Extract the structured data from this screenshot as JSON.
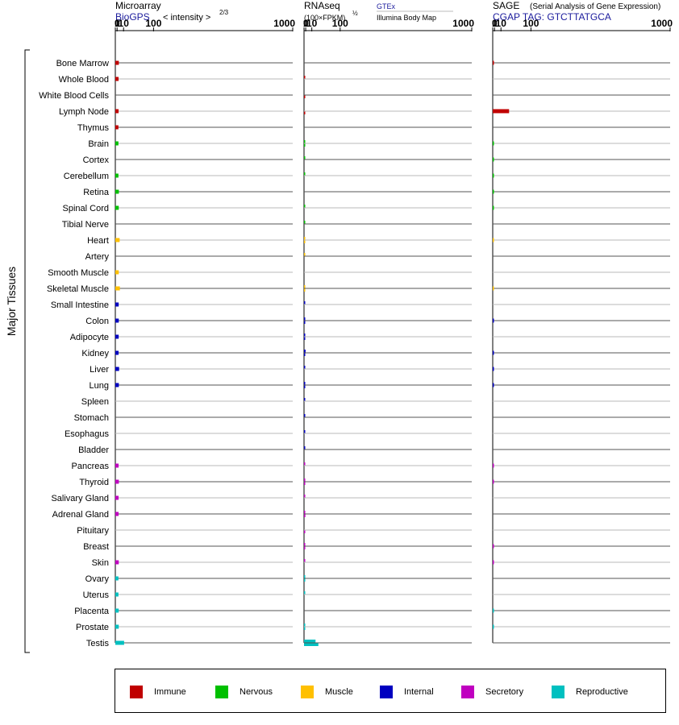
{
  "chart_data": {
    "type": "bar",
    "side_label": "Major Tissues",
    "tissues": [
      {
        "name": "Bone Marrow",
        "group": "immune"
      },
      {
        "name": "Whole Blood",
        "group": "immune"
      },
      {
        "name": "White Blood Cells",
        "group": "immune"
      },
      {
        "name": "Lymph Node",
        "group": "immune"
      },
      {
        "name": "Thymus",
        "group": "immune"
      },
      {
        "name": "Brain",
        "group": "nervous"
      },
      {
        "name": "Cortex",
        "group": "nervous"
      },
      {
        "name": "Cerebellum",
        "group": "nervous"
      },
      {
        "name": "Retina",
        "group": "nervous"
      },
      {
        "name": "Spinal Cord",
        "group": "nervous"
      },
      {
        "name": "Tibial Nerve",
        "group": "nervous"
      },
      {
        "name": "Heart",
        "group": "muscle"
      },
      {
        "name": "Artery",
        "group": "muscle"
      },
      {
        "name": "Smooth Muscle",
        "group": "muscle"
      },
      {
        "name": "Skeletal Muscle",
        "group": "muscle"
      },
      {
        "name": "Small Intestine",
        "group": "internal"
      },
      {
        "name": "Colon",
        "group": "internal"
      },
      {
        "name": "Adipocyte",
        "group": "internal"
      },
      {
        "name": "Kidney",
        "group": "internal"
      },
      {
        "name": "Liver",
        "group": "internal"
      },
      {
        "name": "Lung",
        "group": "internal"
      },
      {
        "name": "Spleen",
        "group": "internal"
      },
      {
        "name": "Stomach",
        "group": "internal"
      },
      {
        "name": "Esophagus",
        "group": "internal"
      },
      {
        "name": "Bladder",
        "group": "internal"
      },
      {
        "name": "Pancreas",
        "group": "secretory"
      },
      {
        "name": "Thyroid",
        "group": "secretory"
      },
      {
        "name": "Salivary Gland",
        "group": "secretory"
      },
      {
        "name": "Adrenal Gland",
        "group": "secretory"
      },
      {
        "name": "Pituitary",
        "group": "secretory"
      },
      {
        "name": "Breast",
        "group": "secretory"
      },
      {
        "name": "Skin",
        "group": "secretory"
      },
      {
        "name": "Ovary",
        "group": "reproductive"
      },
      {
        "name": "Uterus",
        "group": "reproductive"
      },
      {
        "name": "Placenta",
        "group": "reproductive"
      },
      {
        "name": "Prostate",
        "group": "reproductive"
      },
      {
        "name": "Testis",
        "group": "reproductive"
      }
    ],
    "colors": {
      "immune": "#c00000",
      "nervous": "#00c000",
      "muscle": "#ffc000",
      "internal": "#0000c0",
      "secretory": "#c000c0",
      "reproductive": "#00c0c0"
    },
    "panels": [
      {
        "key": "microarray",
        "title": "Microarray",
        "subtitle_link": "BioGPS",
        "scale_note": "< intensity >",
        "scale_exponent": "2/3",
        "ticks": [
          "0",
          "1",
          "10",
          "100",
          "1000"
        ],
        "series": [
          {
            "values": [
              2.8,
              2.5,
              null,
              2.5,
              2.3,
              2.3,
              null,
              2.3,
              2.8,
              2.7,
              null,
              3.8,
              null,
              2.7,
              4.1,
              2.6,
              2.7,
              2.6,
              2.5,
              3.1,
              2.8,
              null,
              null,
              null,
              null,
              2.5,
              2.8,
              2.5,
              2.5,
              null,
              null,
              2.7,
              2.3,
              2.3,
              2.6,
              2.7,
              11.0
            ]
          }
        ]
      },
      {
        "key": "rnaseq",
        "title": "RNAseq",
        "scale_note": "(100×FPKM)",
        "scale_exponent": "½",
        "source_top": "GTEx",
        "source_bottom": "Illumina Body Map",
        "ticks": [
          "0",
          "1",
          "10",
          "100",
          "1000"
        ],
        "series": [
          {
            "name": "GTEx",
            "values": [
              null,
              0.02,
              null,
              null,
              null,
              0.15,
              0.4,
              0.03,
              null,
              0.35,
              0.25,
              0.1,
              0.25,
              null,
              0.12,
              0.02,
              0.02,
              0.05,
              0.9,
              0.02,
              0.04,
              0.02,
              0.4,
              0.02,
              0.5,
              0.02,
              0.2,
              0.02,
              0.2,
              null,
              0.35,
              0.02,
              0.02,
              0.02,
              null,
              0.45,
              18.0
            ]
          },
          {
            "name": "Illumina Body Map",
            "values": [
              null,
              null,
              0.02,
              0.02,
              null,
              0.02,
              null,
              null,
              null,
              null,
              null,
              0.02,
              null,
              null,
              0.02,
              null,
              0.02,
              0.4,
              0.4,
              null,
              0.02,
              null,
              null,
              null,
              null,
              null,
              0.02,
              null,
              0.7,
              0.02,
              0.02,
              null,
              0.02,
              null,
              null,
              0.02,
              25.0
            ]
          }
        ]
      },
      {
        "key": "sage",
        "title": "SAGE",
        "title_note": "(Serial Analysis of Gene Expression)",
        "subtitle_link": "CGAP TAG: GTCTTATGCA",
        "ticks": [
          "0",
          "1",
          "10",
          "100",
          "1000"
        ],
        "series": [
          {
            "values": [
              0.02,
              null,
              null,
              28.0,
              null,
              0.02,
              0.02,
              0.02,
              0.02,
              0.02,
              null,
              0.02,
              null,
              null,
              0.02,
              null,
              0.02,
              null,
              0.02,
              0.02,
              0.02,
              null,
              null,
              null,
              null,
              0.02,
              0.02,
              null,
              null,
              null,
              0.02,
              0.02,
              null,
              null,
              0.02,
              0.02,
              null
            ]
          }
        ]
      }
    ],
    "legend": [
      {
        "key": "immune",
        "label": "Immune"
      },
      {
        "key": "nervous",
        "label": "Nervous"
      },
      {
        "key": "muscle",
        "label": "Muscle"
      },
      {
        "key": "internal",
        "label": "Internal"
      },
      {
        "key": "secretory",
        "label": "Secretory"
      },
      {
        "key": "reproductive",
        "label": "Reproductive"
      }
    ]
  }
}
